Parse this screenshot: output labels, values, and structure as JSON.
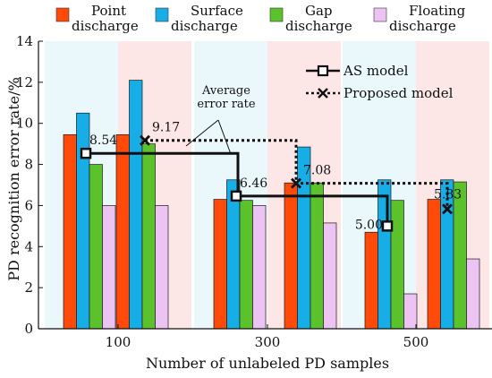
{
  "chart_data": {
    "type": "bar",
    "xlabel": "Number of unlabeled PD samples",
    "ylabel": "PD recognition error rate/%",
    "ylim": [
      0,
      14
    ],
    "yticks": [
      0,
      2,
      4,
      6,
      8,
      10,
      12,
      14
    ],
    "grid": false,
    "legend_position": "top",
    "groups": [
      "100",
      "300",
      "500"
    ],
    "subgroups": [
      "AS model",
      "Proposed model"
    ],
    "series": [
      {
        "name": "Point discharge",
        "name_lines": [
          "Point",
          "discharge"
        ],
        "color": "#ff4a0a",
        "values": [
          [
            9.45,
            9.45
          ],
          [
            6.3,
            7.1
          ],
          [
            4.7,
            6.3
          ]
        ]
      },
      {
        "name": "Surface discharge",
        "name_lines": [
          "Surface",
          "discharge"
        ],
        "color": "#17aee8",
        "values": [
          [
            10.5,
            12.1
          ],
          [
            7.25,
            8.85
          ],
          [
            7.25,
            7.25
          ]
        ]
      },
      {
        "name": "Gap discharge",
        "name_lines": [
          "Gap",
          "discharge"
        ],
        "color": "#5cc22b",
        "values": [
          [
            8.0,
            9.0
          ],
          [
            6.25,
            7.1
          ],
          [
            6.25,
            7.15
          ]
        ]
      },
      {
        "name": "Floating discharge",
        "name_lines": [
          "Floating",
          "discharge"
        ],
        "color": "#ecc3f2",
        "values": [
          [
            6.0,
            6.0
          ],
          [
            6.0,
            5.15
          ],
          [
            1.7,
            3.4
          ]
        ]
      }
    ],
    "lines": [
      {
        "name": "AS model",
        "style": "solid",
        "marker": "square",
        "values": [
          8.54,
          6.46,
          5.0
        ]
      },
      {
        "name": "Proposed model",
        "style": "dotted",
        "marker": "x",
        "values": [
          9.17,
          7.08,
          5.83
        ]
      }
    ],
    "data_labels": {
      "AS model": [
        "8.54",
        "6.46",
        "5.00"
      ],
      "Proposed model": [
        "9.17",
        "7.08",
        "5.83"
      ]
    },
    "annotation": {
      "text_lines": [
        "Average",
        "error rate"
      ]
    },
    "background_colors": {
      "AS model": "#eaf7fb",
      "Proposed model": "#fce6e6"
    }
  }
}
